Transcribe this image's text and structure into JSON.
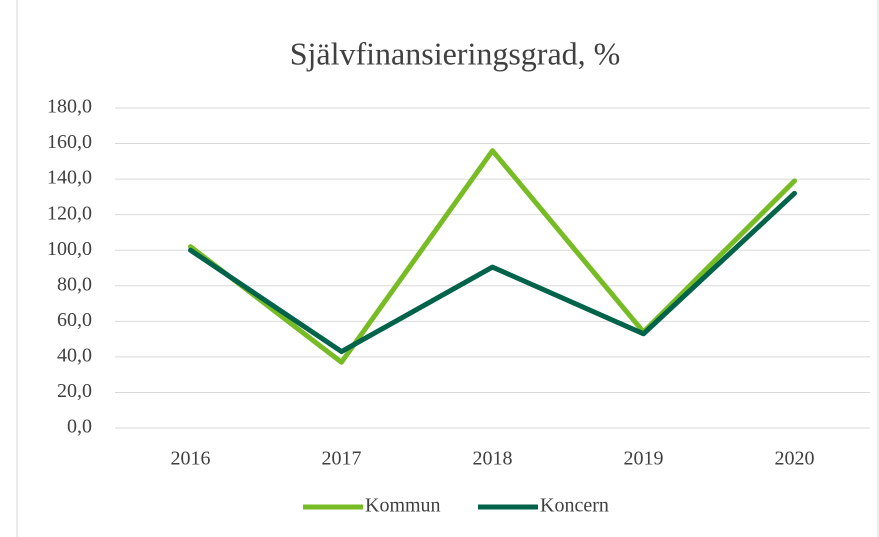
{
  "chart_data": {
    "type": "line",
    "title": "Självfinansieringsgrad, %",
    "categories": [
      "2016",
      "2017",
      "2018",
      "2019",
      "2020"
    ],
    "series": [
      {
        "name": "Kommun",
        "color": "#78bc25",
        "values": [
          102,
          37,
          156,
          54,
          139
        ]
      },
      {
        "name": "Koncern",
        "color": "#00634a",
        "values": [
          100,
          43,
          90.5,
          53,
          132
        ]
      }
    ],
    "ylim": [
      0,
      180
    ],
    "yticks": [
      {
        "value": 0,
        "label": "0,0"
      },
      {
        "value": 20,
        "label": "20,0"
      },
      {
        "value": 40,
        "label": "40,0"
      },
      {
        "value": 60,
        "label": "60,0"
      },
      {
        "value": 80,
        "label": "80,0"
      },
      {
        "value": 100,
        "label": "100,0"
      },
      {
        "value": 120,
        "label": "120,0"
      },
      {
        "value": 140,
        "label": "140,0"
      },
      {
        "value": 160,
        "label": "160,0"
      },
      {
        "value": 180,
        "label": "180,0"
      }
    ],
    "grid": true,
    "legend": "bottom"
  }
}
